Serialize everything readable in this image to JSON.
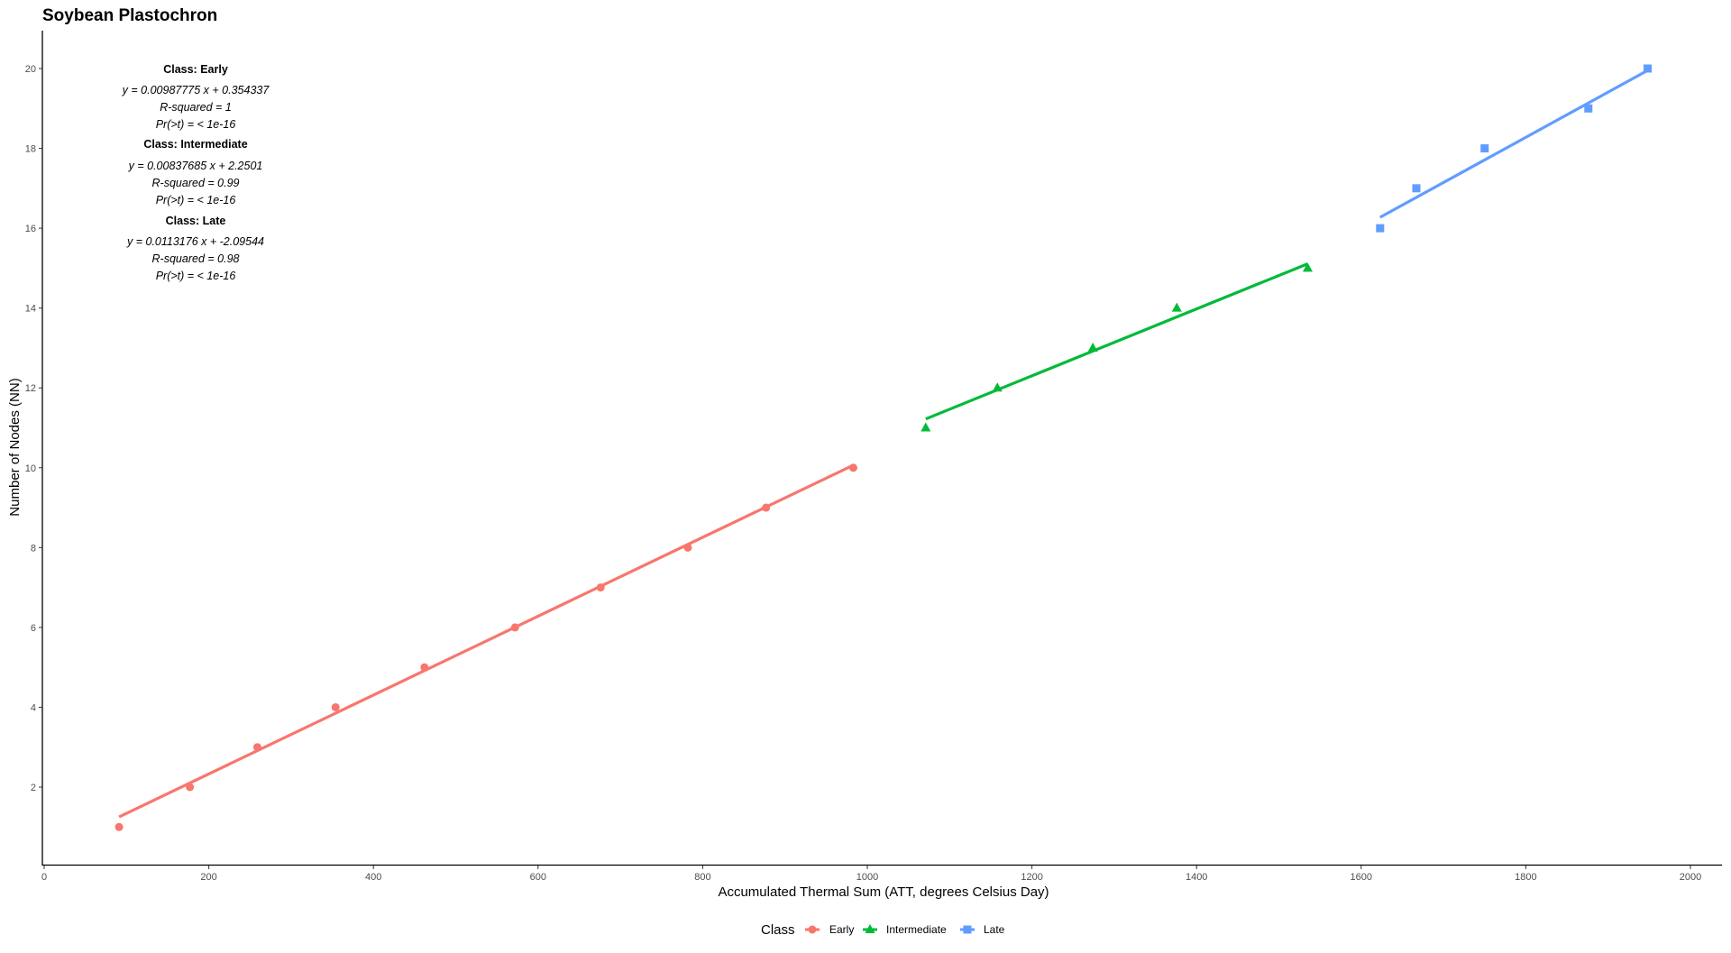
{
  "chart_data": {
    "type": "scatter",
    "title": "Soybean Plastochron",
    "xlabel": "Accumulated Thermal Sum (ATT, degrees Celsius Day)",
    "ylabel": "Number of Nodes (NN)",
    "xlim": [
      -3,
      2038
    ],
    "ylim": [
      0.06,
      20.95
    ],
    "xticks": [
      0,
      200,
      400,
      600,
      800,
      1000,
      1200,
      1400,
      1600,
      1800,
      2000
    ],
    "yticks": [
      2,
      4,
      6,
      8,
      10,
      12,
      14,
      16,
      18,
      20
    ],
    "grid": false,
    "legend": {
      "title": "Class",
      "placement": "bottom"
    },
    "series": [
      {
        "name": "Early",
        "color": "#F8766D",
        "marker": "circle",
        "x": [
          91,
          177,
          259,
          354,
          462,
          572,
          676,
          782,
          877,
          983
        ],
        "y": [
          1,
          2,
          3,
          4,
          5,
          6,
          7,
          8,
          9,
          10
        ],
        "fit": {
          "slope": 0.00987775,
          "intercept": 0.354337
        }
      },
      {
        "name": "Intermediate",
        "color": "#00BA38",
        "marker": "triangle",
        "x": [
          1071,
          1158,
          1274,
          1376,
          1535
        ],
        "y": [
          11,
          12,
          13,
          14,
          15
        ],
        "fit": {
          "slope": 0.00837685,
          "intercept": 2.2501
        }
      },
      {
        "name": "Late",
        "color": "#619CFF",
        "marker": "square",
        "x": [
          1623,
          1667,
          1750,
          1876,
          1948
        ],
        "y": [
          16,
          17,
          18,
          19,
          20
        ],
        "fit": {
          "slope": 0.0113176,
          "intercept": -2.09544
        }
      }
    ],
    "annotations": [
      "Class: Early",
      "y = 0.00987775 x + 0.354337",
      "R-squared = 1",
      "Pr(>t) = < 1e-16",
      "Class: Intermediate",
      "y = 0.00837685 x + 2.2501",
      "R-squared = 0.99",
      "Pr(>t) = < 1e-16",
      "Class: Late",
      "y = 0.0113176 x + -2.09544",
      "R-squared = 0.98",
      "Pr(>t) = < 1e-16"
    ]
  }
}
